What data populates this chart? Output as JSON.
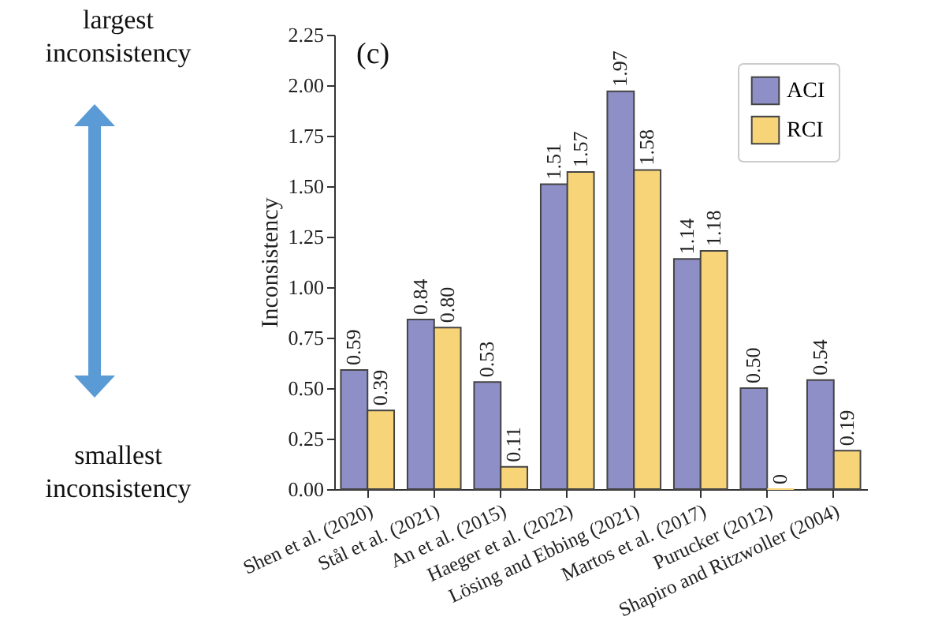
{
  "chart_data": {
    "type": "bar",
    "ylabel": "Inconsistency",
    "annotations": [
      "(c)",
      "largest inconsistency",
      "smallest inconsistency"
    ],
    "categories": [
      "Shen et al. (2020)",
      "Stål et al. (2021)",
      "An et al. (2015)",
      "Haeger et al. (2022)",
      "Lösing and Ebbing (2021)",
      "Martos et al. (2017)",
      "Purucker (2012)",
      "Shapiro and Ritzwoller (2004)"
    ],
    "series": [
      {
        "name": "ACI",
        "color": "#8e8fc7",
        "values": [
          0.59,
          0.84,
          0.53,
          1.51,
          1.97,
          1.14,
          0.5,
          0.54
        ],
        "value_labels": [
          "0.59",
          "0.84",
          "0.53",
          "1.51",
          "1.97",
          "1.14",
          "0.50",
          "0.54"
        ]
      },
      {
        "name": "RCI",
        "color": "#f7d478",
        "values": [
          0.39,
          0.8,
          0.11,
          1.57,
          1.58,
          1.18,
          0,
          0.19
        ],
        "value_labels": [
          "0.39",
          "0.80",
          "0.11",
          "1.57",
          "1.58",
          "1.18",
          "0",
          "0.19"
        ]
      }
    ],
    "ylim": [
      0,
      2.25
    ],
    "yticks": [
      {
        "value": 0,
        "label": "0.00"
      },
      0.25,
      {
        "value": 0.5,
        "label": "0.50"
      },
      0.75,
      {
        "value": 1,
        "label": "1.00"
      },
      1.25,
      {
        "value": 1.5,
        "label": "1.50"
      },
      1.75,
      {
        "value": 2,
        "label": "2.00"
      },
      2.25
    ],
    "grid": false,
    "legend": "top right"
  }
}
